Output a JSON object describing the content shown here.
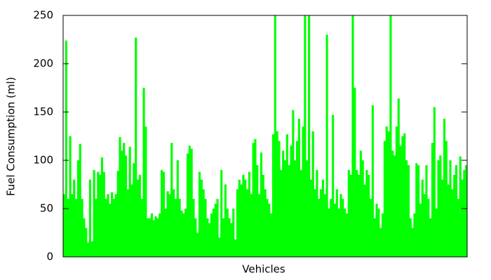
{
  "chart_data": {
    "type": "bar",
    "ylabel": "Fuel Consumption (ml)",
    "xlabel": "Vehicles",
    "color": "#00ff00",
    "ylim": [
      0,
      250
    ],
    "yticks": [
      0,
      50,
      100,
      150,
      200,
      250
    ],
    "values": [
      65,
      224,
      60,
      125,
      65,
      80,
      60,
      100,
      117,
      60,
      40,
      30,
      15,
      80,
      16,
      90,
      60,
      88,
      85,
      103,
      88,
      60,
      65,
      55,
      67,
      60,
      65,
      89,
      124,
      110,
      118,
      105,
      70,
      114,
      75,
      97,
      227,
      80,
      85,
      60,
      175,
      135,
      40,
      40,
      45,
      38,
      42,
      40,
      45,
      90,
      88,
      50,
      68,
      65,
      118,
      70,
      60,
      100,
      60,
      48,
      45,
      50,
      107,
      115,
      112,
      60,
      40,
      25,
      88,
      80,
      70,
      60,
      40,
      35,
      45,
      50,
      55,
      60,
      20,
      90,
      40,
      75,
      50,
      40,
      35,
      50,
      18,
      70,
      80,
      75,
      85,
      80,
      70,
      88,
      65,
      118,
      122,
      95,
      65,
      108,
      85,
      70,
      60,
      55,
      45,
      127,
      250,
      130,
      120,
      90,
      110,
      100,
      127,
      95,
      115,
      152,
      100,
      120,
      143,
      90,
      135,
      250,
      100,
      250,
      80,
      130,
      70,
      90,
      60,
      70,
      80,
      65,
      230,
      50,
      60,
      147,
      55,
      70,
      50,
      65,
      60,
      50,
      45,
      90,
      85,
      250,
      175,
      90,
      85,
      110,
      100,
      75,
      90,
      85,
      60,
      157,
      40,
      55,
      50,
      30,
      45,
      120,
      135,
      130,
      250,
      110,
      105,
      135,
      164,
      115,
      125,
      128,
      100,
      95,
      40,
      30,
      45,
      97,
      95,
      55,
      80,
      65,
      95,
      60,
      40,
      118,
      155,
      50,
      100,
      105,
      80,
      143,
      120,
      75,
      100,
      70,
      85,
      95,
      60,
      104,
      80,
      90,
      95
    ]
  }
}
